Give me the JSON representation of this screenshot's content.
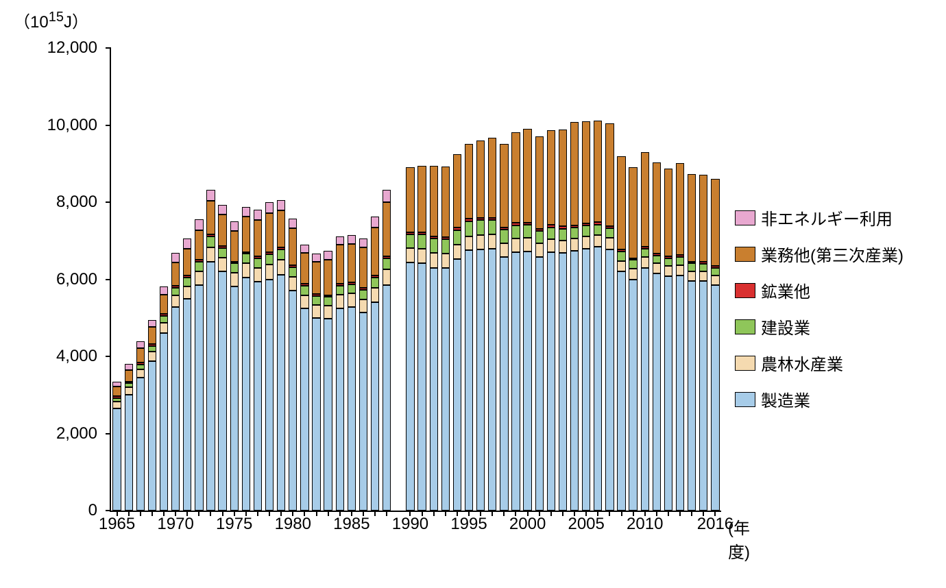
{
  "chart": {
    "type": "stacked-bar",
    "y_axis_unit": "（10",
    "y_axis_unit_sup": "15",
    "y_axis_unit_suffix": "J）",
    "x_axis_unit": "(年度)",
    "ylim": [
      0,
      12000
    ],
    "ytick_step": 2000,
    "yticks": [
      0,
      2000,
      4000,
      6000,
      8000,
      10000,
      12000
    ],
    "ytick_labels": [
      "0",
      "2,000",
      "4,000",
      "6,000",
      "8,000",
      "10,000",
      "12,000"
    ],
    "xtick_years": [
      1965,
      1970,
      1975,
      1980,
      1985,
      1990,
      1995,
      2000,
      2005,
      2010,
      2016
    ],
    "background_color": "#ffffff",
    "axis_color": "#000000",
    "label_fontsize": 24,
    "bar_border_color": "#000000",
    "series": [
      {
        "key": "manufacturing",
        "label": "製造業",
        "color": "#a7cce8"
      },
      {
        "key": "agri_forest_fish",
        "label": "農林水産業",
        "color": "#f5dab0"
      },
      {
        "key": "construction",
        "label": "建設業",
        "color": "#8fc65a"
      },
      {
        "key": "mining_other",
        "label": "鉱業他",
        "color": "#d93030"
      },
      {
        "key": "services",
        "label": "業務他(第三次産業)",
        "color": "#c97f2f"
      },
      {
        "key": "non_energy_use",
        "label": "非エネルギー利用",
        "color": "#e8a8d0"
      }
    ],
    "legend_order": [
      "non_energy_use",
      "services",
      "mining_other",
      "construction",
      "agri_forest_fish",
      "manufacturing"
    ],
    "years": [
      1965,
      1966,
      1967,
      1968,
      1969,
      1970,
      1971,
      1972,
      1973,
      1974,
      1975,
      1976,
      1977,
      1978,
      1979,
      1980,
      1981,
      1982,
      1983,
      1984,
      1985,
      1986,
      1987,
      1988,
      1990,
      1991,
      1992,
      1993,
      1994,
      1995,
      1996,
      1997,
      1998,
      1999,
      2000,
      2001,
      2002,
      2003,
      2004,
      2005,
      2006,
      2007,
      2008,
      2009,
      2010,
      2011,
      2012,
      2013,
      2014,
      2015,
      2016
    ],
    "gap_after": 1988,
    "data": {
      "1965": {
        "manufacturing": 2650,
        "agri_forest_fish": 180,
        "construction": 90,
        "mining_other": 50,
        "services": 250,
        "non_energy_use": 130
      },
      "1966": {
        "manufacturing": 3000,
        "agri_forest_fish": 200,
        "construction": 100,
        "mining_other": 50,
        "services": 300,
        "non_energy_use": 150
      },
      "1967": {
        "manufacturing": 3450,
        "agri_forest_fish": 220,
        "construction": 120,
        "mining_other": 50,
        "services": 380,
        "non_energy_use": 170
      },
      "1968": {
        "manufacturing": 3880,
        "agri_forest_fish": 250,
        "construction": 140,
        "mining_other": 50,
        "services": 440,
        "non_energy_use": 190
      },
      "1969": {
        "manufacturing": 4600,
        "agri_forest_fish": 280,
        "construction": 170,
        "mining_other": 50,
        "services": 500,
        "non_energy_use": 220
      },
      "1970": {
        "manufacturing": 5280,
        "agri_forest_fish": 300,
        "construction": 200,
        "mining_other": 50,
        "services": 600,
        "non_energy_use": 260
      },
      "1971": {
        "manufacturing": 5500,
        "agri_forest_fish": 320,
        "construction": 220,
        "mining_other": 50,
        "services": 700,
        "non_energy_use": 260
      },
      "1972": {
        "manufacturing": 5850,
        "agri_forest_fish": 350,
        "construction": 250,
        "mining_other": 50,
        "services": 780,
        "non_energy_use": 270
      },
      "1973": {
        "manufacturing": 6450,
        "agri_forest_fish": 380,
        "construction": 280,
        "mining_other": 50,
        "services": 880,
        "non_energy_use": 280
      },
      "1974": {
        "manufacturing": 6200,
        "agri_forest_fish": 360,
        "construction": 250,
        "mining_other": 50,
        "services": 820,
        "non_energy_use": 250
      },
      "1975": {
        "manufacturing": 5820,
        "agri_forest_fish": 350,
        "construction": 240,
        "mining_other": 50,
        "services": 800,
        "non_energy_use": 240
      },
      "1976": {
        "manufacturing": 6050,
        "agri_forest_fish": 360,
        "construction": 250,
        "mining_other": 50,
        "services": 910,
        "non_energy_use": 260
      },
      "1977": {
        "manufacturing": 5930,
        "agri_forest_fish": 360,
        "construction": 260,
        "mining_other": 50,
        "services": 930,
        "non_energy_use": 280
      },
      "1978": {
        "manufacturing": 6000,
        "agri_forest_fish": 380,
        "construction": 270,
        "mining_other": 50,
        "services": 1010,
        "non_energy_use": 290
      },
      "1979": {
        "manufacturing": 6120,
        "agri_forest_fish": 380,
        "construction": 270,
        "mining_other": 50,
        "services": 960,
        "non_energy_use": 270
      },
      "1980": {
        "manufacturing": 5700,
        "agri_forest_fish": 360,
        "construction": 260,
        "mining_other": 50,
        "services": 950,
        "non_energy_use": 250
      },
      "1981": {
        "manufacturing": 5250,
        "agri_forest_fish": 340,
        "construction": 240,
        "mining_other": 50,
        "services": 810,
        "non_energy_use": 200
      },
      "1982": {
        "manufacturing": 5000,
        "agri_forest_fish": 330,
        "construction": 230,
        "mining_other": 50,
        "services": 850,
        "non_energy_use": 200
      },
      "1983": {
        "manufacturing": 4980,
        "agri_forest_fish": 330,
        "construction": 230,
        "mining_other": 50,
        "services": 920,
        "non_energy_use": 220
      },
      "1984": {
        "manufacturing": 5250,
        "agri_forest_fish": 350,
        "construction": 240,
        "mining_other": 50,
        "services": 1000,
        "non_energy_use": 220
      },
      "1985": {
        "manufacturing": 5280,
        "agri_forest_fish": 350,
        "construction": 240,
        "mining_other": 50,
        "services": 1000,
        "non_energy_use": 220
      },
      "1986": {
        "manufacturing": 5130,
        "agri_forest_fish": 350,
        "construction": 240,
        "mining_other": 50,
        "services": 1050,
        "non_energy_use": 230
      },
      "1987": {
        "manufacturing": 5400,
        "agri_forest_fish": 370,
        "construction": 270,
        "mining_other": 50,
        "services": 1250,
        "non_energy_use": 280
      },
      "1988": {
        "manufacturing": 5850,
        "agri_forest_fish": 400,
        "construction": 300,
        "mining_other": 50,
        "services": 1400,
        "non_energy_use": 320
      },
      "1990": {
        "manufacturing": 6430,
        "agri_forest_fish": 380,
        "construction": 350,
        "mining_other": 60,
        "services": 1680,
        "non_energy_use": 0
      },
      "1991": {
        "manufacturing": 6420,
        "agri_forest_fish": 380,
        "construction": 360,
        "mining_other": 60,
        "services": 1730,
        "non_energy_use": 0
      },
      "1992": {
        "manufacturing": 6300,
        "agri_forest_fish": 380,
        "construction": 370,
        "mining_other": 60,
        "services": 1830,
        "non_energy_use": 0
      },
      "1993": {
        "manufacturing": 6300,
        "agri_forest_fish": 370,
        "construction": 370,
        "mining_other": 60,
        "services": 1820,
        "non_energy_use": 0
      },
      "1994": {
        "manufacturing": 6520,
        "agri_forest_fish": 380,
        "construction": 380,
        "mining_other": 60,
        "services": 1900,
        "non_energy_use": 0
      },
      "1995": {
        "manufacturing": 6750,
        "agri_forest_fish": 370,
        "construction": 390,
        "mining_other": 60,
        "services": 1950,
        "non_energy_use": 0
      },
      "1996": {
        "manufacturing": 6780,
        "agri_forest_fish": 370,
        "construction": 390,
        "mining_other": 60,
        "services": 2000,
        "non_energy_use": 0
      },
      "1997": {
        "manufacturing": 6800,
        "agri_forest_fish": 370,
        "construction": 370,
        "mining_other": 60,
        "services": 2070,
        "non_energy_use": 0
      },
      "1998": {
        "manufacturing": 6580,
        "agri_forest_fish": 360,
        "construction": 350,
        "mining_other": 60,
        "services": 2170,
        "non_energy_use": 0
      },
      "1999": {
        "manufacturing": 6700,
        "agri_forest_fish": 360,
        "construction": 340,
        "mining_other": 60,
        "services": 2350,
        "non_energy_use": 0
      },
      "2000": {
        "manufacturing": 6720,
        "agri_forest_fish": 360,
        "construction": 330,
        "mining_other": 60,
        "services": 2430,
        "non_energy_use": 0
      },
      "2001": {
        "manufacturing": 6580,
        "agri_forest_fish": 350,
        "construction": 320,
        "mining_other": 60,
        "services": 2400,
        "non_energy_use": 0
      },
      "2002": {
        "manufacturing": 6700,
        "agri_forest_fish": 340,
        "construction": 310,
        "mining_other": 60,
        "services": 2450,
        "non_energy_use": 0
      },
      "2003": {
        "manufacturing": 6680,
        "agri_forest_fish": 330,
        "construction": 300,
        "mining_other": 60,
        "services": 2520,
        "non_energy_use": 0
      },
      "2004": {
        "manufacturing": 6730,
        "agri_forest_fish": 320,
        "construction": 290,
        "mining_other": 60,
        "services": 2680,
        "non_energy_use": 0
      },
      "2005": {
        "manufacturing": 6800,
        "agri_forest_fish": 310,
        "construction": 280,
        "mining_other": 60,
        "services": 2650,
        "non_energy_use": 0
      },
      "2006": {
        "manufacturing": 6850,
        "agri_forest_fish": 300,
        "construction": 270,
        "mining_other": 60,
        "services": 2640,
        "non_energy_use": 0
      },
      "2007": {
        "manufacturing": 6780,
        "agri_forest_fish": 290,
        "construction": 250,
        "mining_other": 60,
        "services": 2670,
        "non_energy_use": 0
      },
      "2008": {
        "manufacturing": 6200,
        "agri_forest_fish": 280,
        "construction": 240,
        "mining_other": 60,
        "services": 2420,
        "non_energy_use": 0
      },
      "2009": {
        "manufacturing": 6000,
        "agri_forest_fish": 270,
        "construction": 230,
        "mining_other": 50,
        "services": 2350,
        "non_energy_use": 0
      },
      "2010": {
        "manufacturing": 6300,
        "agri_forest_fish": 270,
        "construction": 220,
        "mining_other": 50,
        "services": 2450,
        "non_energy_use": 0
      },
      "2011": {
        "manufacturing": 6150,
        "agri_forest_fish": 260,
        "construction": 210,
        "mining_other": 50,
        "services": 2370,
        "non_energy_use": 0
      },
      "2012": {
        "manufacturing": 6080,
        "agri_forest_fish": 260,
        "construction": 210,
        "mining_other": 50,
        "services": 2270,
        "non_energy_use": 0
      },
      "2013": {
        "manufacturing": 6100,
        "agri_forest_fish": 260,
        "construction": 220,
        "mining_other": 50,
        "services": 2380,
        "non_energy_use": 0
      },
      "2014": {
        "manufacturing": 5950,
        "agri_forest_fish": 250,
        "construction": 210,
        "mining_other": 50,
        "services": 2270,
        "non_energy_use": 0
      },
      "2015": {
        "manufacturing": 5950,
        "agri_forest_fish": 250,
        "construction": 200,
        "mining_other": 50,
        "services": 2270,
        "non_energy_use": 0
      },
      "2016": {
        "manufacturing": 5850,
        "agri_forest_fish": 250,
        "construction": 200,
        "mining_other": 50,
        "services": 2250,
        "non_energy_use": 0
      }
    }
  }
}
